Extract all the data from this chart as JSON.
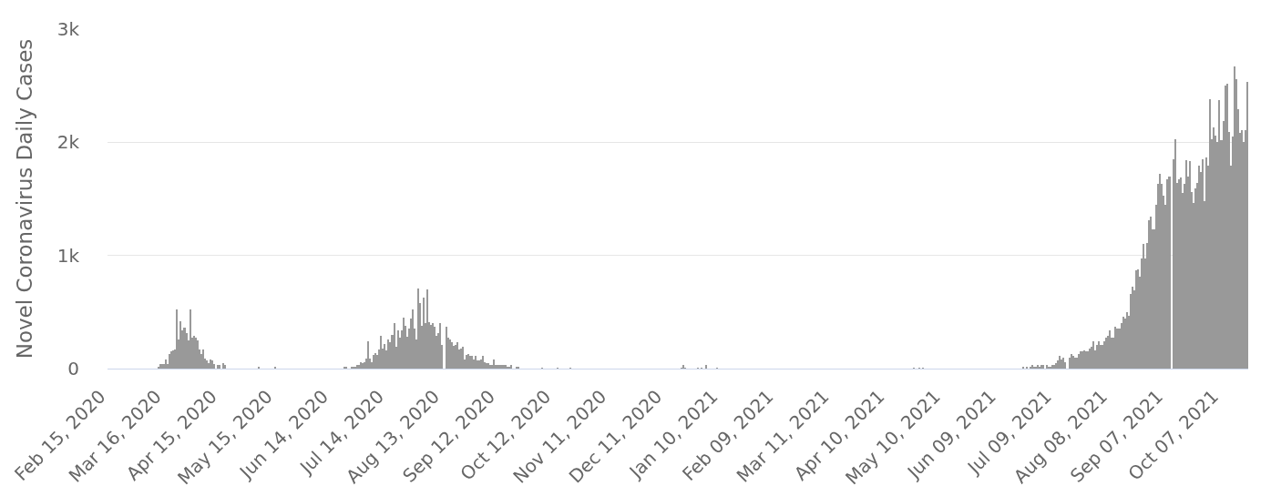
{
  "chart_data": {
    "type": "bar",
    "ylabel": "Novel Coronavirus Daily Cases",
    "color": "#999999",
    "grid": "y",
    "x": [
      "2020-03-13",
      "2020-03-14",
      "2020-03-15",
      "2020-03-16",
      "2020-03-17",
      "2020-03-18",
      "2020-03-19",
      "2020-03-20",
      "2020-03-21",
      "2020-03-22",
      "2020-03-23",
      "2020-03-24",
      "2020-03-25",
      "2020-03-26",
      "2020-03-27",
      "2020-03-28",
      "2020-03-29",
      "2020-03-30",
      "2020-03-31",
      "2020-04-01",
      "2020-04-02",
      "2020-04-03",
      "2020-04-04",
      "2020-04-05",
      "2020-04-06",
      "2020-04-07",
      "2020-04-08",
      "2020-04-09",
      "2020-04-10",
      "2020-04-11",
      "2020-04-12",
      "2020-04-14",
      "2020-04-15",
      "2020-04-17",
      "2020-04-18",
      "2020-05-06",
      "2020-05-15",
      "2020-06-21",
      "2020-06-22",
      "2020-06-25",
      "2020-06-26",
      "2020-06-27",
      "2020-06-28",
      "2020-06-29",
      "2020-06-30",
      "2020-07-01",
      "2020-07-02",
      "2020-07-03",
      "2020-07-04",
      "2020-07-05",
      "2020-07-06",
      "2020-07-07",
      "2020-07-08",
      "2020-07-09",
      "2020-07-10",
      "2020-07-11",
      "2020-07-12",
      "2020-07-13",
      "2020-07-14",
      "2020-07-15",
      "2020-07-16",
      "2020-07-17",
      "2020-07-18",
      "2020-07-19",
      "2020-07-20",
      "2020-07-21",
      "2020-07-22",
      "2020-07-23",
      "2020-07-24",
      "2020-07-25",
      "2020-07-26",
      "2020-07-27",
      "2020-07-28",
      "2020-07-29",
      "2020-07-30",
      "2020-07-31",
      "2020-08-01",
      "2020-08-02",
      "2020-08-03",
      "2020-08-04",
      "2020-08-05",
      "2020-08-06",
      "2020-08-07",
      "2020-08-08",
      "2020-08-09",
      "2020-08-10",
      "2020-08-11",
      "2020-08-12",
      "2020-08-13",
      "2020-08-15",
      "2020-08-16",
      "2020-08-17",
      "2020-08-18",
      "2020-08-19",
      "2020-08-20",
      "2020-08-21",
      "2020-08-22",
      "2020-08-23",
      "2020-08-24",
      "2020-08-25",
      "2020-08-26",
      "2020-08-27",
      "2020-08-28",
      "2020-08-29",
      "2020-08-30",
      "2020-08-31",
      "2020-09-01",
      "2020-09-02",
      "2020-09-03",
      "2020-09-04",
      "2020-09-05",
      "2020-09-06",
      "2020-09-07",
      "2020-09-08",
      "2020-09-09",
      "2020-09-10",
      "2020-09-11",
      "2020-09-12",
      "2020-09-13",
      "2020-09-14",
      "2020-09-15",
      "2020-09-16",
      "2020-09-17",
      "2020-09-18",
      "2020-09-19",
      "2020-09-22",
      "2020-09-23",
      "2020-10-06",
      "2020-10-14",
      "2020-10-21",
      "2020-12-20",
      "2020-12-21",
      "2020-12-22",
      "2020-12-29",
      "2020-12-31",
      "2021-01-02",
      "2021-01-08",
      "2021-04-24",
      "2021-04-27",
      "2021-04-29",
      "2021-06-22",
      "2021-06-24",
      "2021-06-26",
      "2021-06-27",
      "2021-06-28",
      "2021-06-29",
      "2021-06-30",
      "2021-07-01",
      "2021-07-02",
      "2021-07-03",
      "2021-07-05",
      "2021-07-06",
      "2021-07-07",
      "2021-07-08",
      "2021-07-09",
      "2021-07-10",
      "2021-07-11",
      "2021-07-12",
      "2021-07-13",
      "2021-07-14",
      "2021-07-15",
      "2021-07-17",
      "2021-07-18",
      "2021-07-19",
      "2021-07-20",
      "2021-07-21",
      "2021-07-22",
      "2021-07-23",
      "2021-07-24",
      "2021-07-25",
      "2021-07-26",
      "2021-07-27",
      "2021-07-28",
      "2021-07-29",
      "2021-07-30",
      "2021-07-31",
      "2021-08-01",
      "2021-08-02",
      "2021-08-03",
      "2021-08-04",
      "2021-08-05",
      "2021-08-06",
      "2021-08-07",
      "2021-08-08",
      "2021-08-09",
      "2021-08-10",
      "2021-08-11",
      "2021-08-12",
      "2021-08-13",
      "2021-08-14",
      "2021-08-15",
      "2021-08-16",
      "2021-08-17",
      "2021-08-18",
      "2021-08-19",
      "2021-08-20",
      "2021-08-21",
      "2021-08-22",
      "2021-08-23",
      "2021-08-24",
      "2021-08-25",
      "2021-08-26",
      "2021-08-27",
      "2021-08-28",
      "2021-08-29",
      "2021-08-30",
      "2021-08-31",
      "2021-09-01",
      "2021-09-02",
      "2021-09-03",
      "2021-09-04",
      "2021-09-05",
      "2021-09-06",
      "2021-09-07",
      "2021-09-08",
      "2021-09-09",
      "2021-09-11",
      "2021-09-12",
      "2021-09-13",
      "2021-09-14",
      "2021-09-15",
      "2021-09-16",
      "2021-09-17",
      "2021-09-18",
      "2021-09-19",
      "2021-09-20",
      "2021-09-21",
      "2021-09-22",
      "2021-09-23",
      "2021-09-24",
      "2021-09-25",
      "2021-09-26",
      "2021-09-27",
      "2021-09-28",
      "2021-09-29",
      "2021-09-30",
      "2021-10-01",
      "2021-10-02",
      "2021-10-03",
      "2021-10-04",
      "2021-10-05",
      "2021-10-06",
      "2021-10-07",
      "2021-10-08",
      "2021-10-09",
      "2021-10-10",
      "2021-10-11",
      "2021-10-12",
      "2021-10-13",
      "2021-10-14",
      "2021-10-15",
      "2021-10-16",
      "2021-10-17",
      "2021-10-18",
      "2021-10-19",
      "2021-10-20",
      "2021-10-21"
    ],
    "values": [
      20,
      40,
      40,
      40,
      80,
      40,
      130,
      150,
      160,
      170,
      520,
      260,
      420,
      340,
      360,
      310,
      250,
      520,
      270,
      290,
      270,
      250,
      170,
      130,
      170,
      90,
      70,
      50,
      80,
      70,
      40,
      30,
      30,
      50,
      30,
      20,
      20,
      20,
      20,
      20,
      20,
      20,
      30,
      30,
      60,
      50,
      60,
      90,
      240,
      90,
      60,
      120,
      140,
      120,
      170,
      290,
      180,
      220,
      160,
      260,
      230,
      300,
      400,
      190,
      340,
      270,
      340,
      450,
      380,
      280,
      350,
      440,
      520,
      350,
      260,
      710,
      580,
      380,
      630,
      400,
      700,
      410,
      390,
      400,
      370,
      290,
      310,
      400,
      210,
      370,
      270,
      260,
      230,
      200,
      210,
      230,
      170,
      180,
      190,
      80,
      120,
      130,
      110,
      110,
      80,
      110,
      70,
      70,
      80,
      110,
      60,
      50,
      50,
      30,
      30,
      80,
      30,
      30,
      30,
      30,
      30,
      30,
      20,
      20,
      30,
      20,
      20,
      10,
      10,
      10,
      10,
      30,
      10,
      10,
      10,
      30,
      10,
      10,
      10,
      10,
      20,
      20,
      20,
      30,
      20,
      20,
      30,
      20,
      30,
      30,
      30,
      20,
      20,
      30,
      30,
      50,
      70,
      110,
      80,
      100,
      60,
      100,
      130,
      110,
      100,
      100,
      130,
      150,
      150,
      160,
      150,
      150,
      180,
      190,
      240,
      160,
      210,
      240,
      210,
      210,
      240,
      270,
      290,
      340,
      270,
      270,
      370,
      350,
      350,
      400,
      460,
      440,
      500,
      470,
      660,
      720,
      690,
      870,
      880,
      810,
      970,
      1100,
      970,
      1110,
      1310,
      1340,
      1230,
      1230,
      1450,
      1630,
      1720,
      1630,
      1530,
      1450,
      1670,
      1700,
      1850,
      2030,
      1640,
      1670,
      1690,
      1550,
      1630,
      1840,
      1700,
      1830,
      1560,
      1460,
      1590,
      1640,
      1790,
      1740,
      1850,
      1480,
      1870,
      1790,
      2380,
      2030,
      2130,
      2060,
      2000,
      2370,
      2020,
      2190,
      2500,
      2520,
      2090,
      1790,
      2050,
      2670,
      2560,
      2290,
      2080,
      2110,
      2000,
      2110,
      2530
    ],
    "xlim": [
      "2020-02-14T12:00",
      "2021-10-21T12:00"
    ],
    "xticks": [
      {
        "value": "2020-02-15",
        "label": "Feb 15, 2020"
      },
      {
        "value": "2020-03-16",
        "label": "Mar 16, 2020"
      },
      {
        "value": "2020-04-15",
        "label": "Apr 15, 2020"
      },
      {
        "value": "2020-05-15",
        "label": "May 15, 2020"
      },
      {
        "value": "2020-06-14",
        "label": "Jun 14, 2020"
      },
      {
        "value": "2020-07-14",
        "label": "Jul 14, 2020"
      },
      {
        "value": "2020-08-13",
        "label": "Aug 13, 2020"
      },
      {
        "value": "2020-09-12",
        "label": "Sep 12, 2020"
      },
      {
        "value": "2020-10-12",
        "label": "Oct 12, 2020"
      },
      {
        "value": "2020-11-11",
        "label": "Nov 11, 2020"
      },
      {
        "value": "2020-12-11",
        "label": "Dec 11, 2020"
      },
      {
        "value": "2021-01-10",
        "label": "Jan 10, 2021"
      },
      {
        "value": "2021-02-09",
        "label": "Feb 09, 2021"
      },
      {
        "value": "2021-03-11",
        "label": "Mar 11, 2021"
      },
      {
        "value": "2021-04-10",
        "label": "Apr 10, 2021"
      },
      {
        "value": "2021-05-10",
        "label": "May 10, 2021"
      },
      {
        "value": "2021-06-09",
        "label": "Jun 09, 2021"
      },
      {
        "value": "2021-07-09",
        "label": "Jul 09, 2021"
      },
      {
        "value": "2021-08-08",
        "label": "Aug 08, 2021"
      },
      {
        "value": "2021-09-07",
        "label": "Sep 07, 2021"
      },
      {
        "value": "2021-10-07",
        "label": "Oct 07, 2021"
      }
    ],
    "ylim": [
      0,
      3000
    ],
    "yticks": [
      0,
      {
        "value": 1000,
        "label": "1k"
      },
      {
        "value": 2000,
        "label": "2k"
      },
      {
        "value": 3000,
        "label": "3k"
      }
    ]
  }
}
